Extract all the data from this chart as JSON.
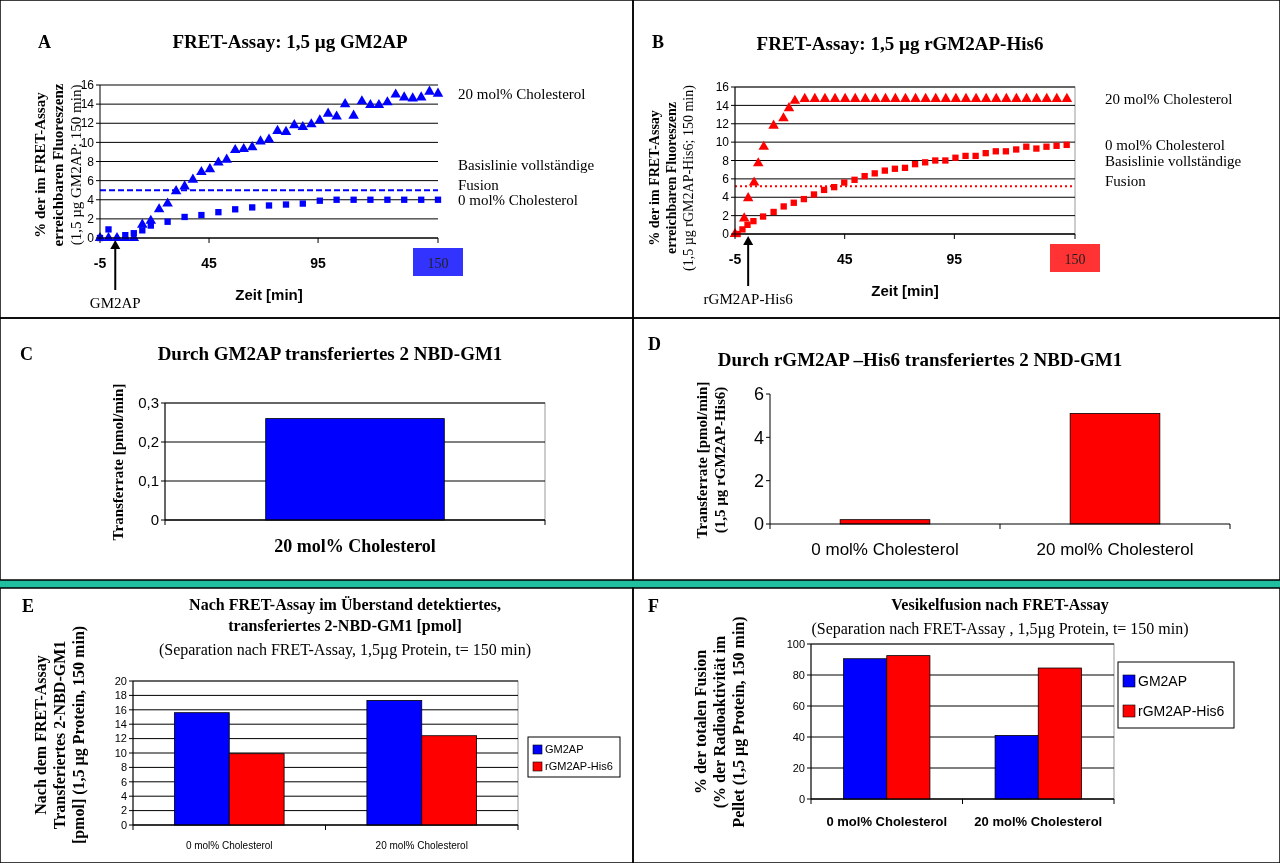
{
  "chart_data": [
    {
      "type": "scatter",
      "title": "FRET-Assay: 1,5 µg GM2AP",
      "xlabel": "Zeit [min]",
      "ylabel": "% der im FRET-Assay erreichbaren Fluoreszenz (1,5 µg GM2AP; 150 min)",
      "annotations": [
        "A",
        {
          "text": "GM2AP",
          "x": 2,
          "y": 0
        }
      ],
      "xlim": [
        -5,
        150
      ],
      "xticks": [
        -5,
        45,
        95,
        150
      ],
      "ylim": [
        0,
        16
      ],
      "yticks": [
        0,
        2,
        4,
        6,
        8,
        10,
        12,
        14,
        16
      ],
      "grid": "y",
      "legend": "right",
      "series": [
        {
          "name": "20 mol% Cholesterol",
          "color": "#0000ff",
          "marker": "triangle",
          "x": [
            -5,
            -1.1,
            2.8,
            6.6,
            10.5,
            14.4,
            18.3,
            22.1,
            26,
            29.9,
            33.8,
            37.6,
            41.5,
            45.4,
            49.3,
            53.1,
            57,
            60.9,
            64.8,
            68.6,
            72.5,
            76.4,
            80.3,
            84.1,
            88,
            91.9,
            95.8,
            99.6,
            103.5,
            107.4,
            111.3,
            115.1,
            119,
            122.9,
            126.8,
            130.6,
            134.5,
            138.4,
            142.3,
            146.1,
            150
          ],
          "values": [
            0,
            0,
            0,
            0,
            0,
            1.4,
            1.8,
            3,
            3.6,
            4.9,
            5.4,
            6.1,
            6.9,
            7.2,
            7.9,
            8.2,
            9.2,
            9.3,
            9.5,
            10.1,
            10.3,
            11.2,
            11.1,
            11.8,
            11.6,
            11.9,
            12.3,
            13,
            12.7,
            14,
            12.8,
            14.3,
            13.9,
            13.9,
            14.2,
            15,
            14.7,
            14.6,
            14.7,
            15.3,
            15.1
          ]
        },
        {
          "name": "0 mol% Cholesterol",
          "color": "#0000ff",
          "marker": "square",
          "x": [
            -5,
            -1.1,
            6.6,
            10.5,
            14.4,
            18.3,
            26,
            33.8,
            41.5,
            49.3,
            57,
            64.8,
            72.5,
            80.3,
            88,
            95.8,
            103.5,
            111.3,
            119,
            126.8,
            134.5,
            142.3,
            150
          ],
          "values": [
            0,
            0.9,
            0.3,
            0.5,
            0.8,
            1.3,
            1.7,
            2.2,
            2.4,
            2.7,
            3,
            3.2,
            3.4,
            3.5,
            3.6,
            3.9,
            4,
            4,
            4,
            4,
            4,
            4,
            4
          ]
        }
      ],
      "ref_lines": [
        {
          "axis": "y",
          "value": 5,
          "label": "Basislinie vollständige Fusion",
          "color": "#0000ff",
          "line_style": "dashed"
        }
      ]
    },
    {
      "type": "scatter",
      "title": "FRET-Assay: 1,5 µg rGM2AP-His6",
      "xlabel": "Zeit [min]",
      "ylabel": "% der im FRET-Assay erreichbaren Fluoreszenz (1,5 µg rGM2AP-His6; 150 min)",
      "annotations": [
        "B",
        {
          "text": "rGM2AP-His6",
          "x": 1,
          "y": 0
        }
      ],
      "xlim": [
        -5,
        150
      ],
      "xticks": [
        -5,
        45,
        95,
        150
      ],
      "ylim": [
        0,
        16
      ],
      "yticks": [
        0,
        2,
        4,
        6,
        8,
        10,
        12,
        14,
        16
      ],
      "grid": "y",
      "legend": "right",
      "series": [
        {
          "name": "20 mol% Cholesterol",
          "color": "#ff0000",
          "marker": "triangle",
          "x": [
            -5,
            -0.8,
            1,
            3.7,
            5.6,
            8.1,
            12.6,
            17.1,
            19.6,
            22.3,
            26.8,
            31.4,
            36,
            40.6,
            45.2,
            49.8,
            54.4,
            59,
            63.6,
            68.1,
            72.7,
            77.3,
            81.9,
            86.5,
            91.1,
            95.7,
            100.3,
            104.9,
            109.5,
            114.1,
            118.7,
            123.3,
            127.9,
            132.5,
            137.1,
            141.7,
            146.3
          ],
          "values": [
            0,
            1.7,
            3.9,
            5.6,
            7.7,
            9.5,
            11.8,
            12.6,
            13.7,
            14.5,
            14.7,
            14.7,
            14.7,
            14.7,
            14.7,
            14.7,
            14.7,
            14.7,
            14.7,
            14.7,
            14.7,
            14.7,
            14.7,
            14.7,
            14.7,
            14.7,
            14.7,
            14.7,
            14.7,
            14.7,
            14.7,
            14.7,
            14.7,
            14.7,
            14.7,
            14.7,
            14.7
          ]
        },
        {
          "name": "0 mol% Cholesterol",
          "color": "#ff0000",
          "marker": "square",
          "x": [
            -3.8,
            -1.6,
            0.7,
            3.4,
            7.8,
            12.6,
            17.2,
            21.8,
            26.4,
            31,
            35.6,
            40.2,
            44.8,
            49.5,
            54.1,
            58.7,
            63.3,
            67.9,
            72.5,
            77.1,
            81.7,
            86.3,
            90.9,
            95.5,
            100.1,
            104.7,
            109.3,
            113.9,
            118.5,
            123.2,
            127.8,
            132.4,
            137,
            141.6,
            146.2
          ],
          "values": [
            0,
            0.5,
            1,
            1.4,
            1.9,
            2.4,
            3,
            3.4,
            3.8,
            4.3,
            4.8,
            5.1,
            5.6,
            5.9,
            6.3,
            6.6,
            6.9,
            7.1,
            7.2,
            7.6,
            7.8,
            8,
            8,
            8.3,
            8.5,
            8.5,
            8.8,
            9,
            9,
            9.2,
            9.5,
            9.3,
            9.5,
            9.6,
            9.7
          ]
        }
      ],
      "ref_lines": [
        {
          "axis": "y",
          "value": 5.2,
          "label": "Basislinie vollständige Fusion",
          "color": "#ff0000",
          "line_style": "dotted"
        }
      ]
    },
    {
      "type": "bar",
      "title": "Durch GM2AP transferiertes 2 NBD-GM1",
      "ylabel": "Transferrate [pmol/min]",
      "annotations": [
        "C"
      ],
      "categories": [
        "20 mol% Cholesterol"
      ],
      "values": [
        0.26
      ],
      "color": "#0000ff",
      "ylim": [
        0,
        0.3
      ],
      "yticks": [
        0,
        {
          "value": 0.1,
          "label": "0,1"
        },
        {
          "value": 0.2,
          "label": "0,2"
        },
        {
          "value": 0.3,
          "label": "0,3"
        }
      ],
      "grid": "y"
    },
    {
      "type": "bar",
      "title": "Durch rGM2AP –His6 transferiertes 2 NBD-GM1",
      "ylabel": "Transferrate [pmol/min] (1,5 µg rGM2AP-His6)",
      "annotations": [
        "D"
      ],
      "categories": [
        "0 mol% Cholesterol",
        "20 mol% Cholesterol"
      ],
      "values": [
        0.2,
        5.1
      ],
      "color": "#ff0000",
      "ylim": [
        0,
        6
      ],
      "yticks": [
        0,
        2,
        4,
        6
      ]
    },
    {
      "type": "bar",
      "title": "Nach FRET-Assay im Überstand detektiertes, transferiertes 2-NBD-GM1 [pmol]",
      "subtitle": "(Separation nach FRET-Assay, 1,5µg Protein, t= 150 min)",
      "ylabel": "Nach dem FRET-Assay Transferiertes 2-NBD-GM1 [pmol] (1,5 µg Protein, 150 min)",
      "annotations": [
        "E"
      ],
      "categories": [
        "0 mol% Cholesterol",
        "20 mol% Cholesterol"
      ],
      "ylim": [
        0,
        20
      ],
      "yticks": [
        0,
        2,
        4,
        6,
        8,
        10,
        12,
        14,
        16,
        18,
        20
      ],
      "grid": "y",
      "legend": "right",
      "series": [
        {
          "name": "GM2AP",
          "color": "#0000ff",
          "values": [
            15.6,
            17.3
          ]
        },
        {
          "name": "rGM2AP-His6",
          "color": "#ff0000",
          "values": [
            9.9,
            12.4
          ]
        }
      ]
    },
    {
      "type": "bar",
      "title": "Vesikelfusion nach FRET-Assay",
      "subtitle": "(Separation nach FRET-Assay , 1,5µg Protein, t= 150 min)",
      "ylabel": "% der totalen Fusion (% der Radioaktivität im Pellet (1,5 µg Protein, 150 min)",
      "annotations": [
        "F"
      ],
      "categories": [
        "0 mol% Cholesterol",
        "20 mol% Cholesterol"
      ],
      "ylim": [
        0,
        100
      ],
      "yticks": [
        0,
        20,
        40,
        60,
        80,
        100
      ],
      "grid": "y",
      "legend": "right",
      "series": [
        {
          "name": "GM2AP",
          "color": "#0000ff",
          "values": [
            90.5,
            41
          ]
        },
        {
          "name": "rGM2AP-His6",
          "color": "#ff0000",
          "values": [
            92.5,
            84.5
          ]
        }
      ]
    }
  ]
}
